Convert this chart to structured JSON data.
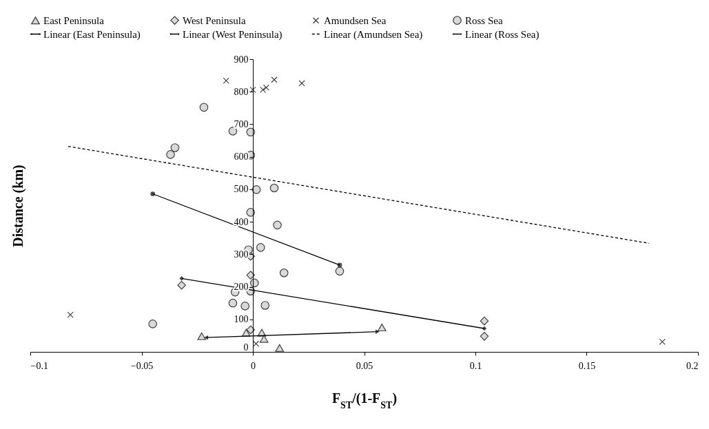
{
  "chart_data": {
    "type": "scatter",
    "xlabel": "F$_{ST}$/(1-F$_{ST}$)",
    "ylabel": "Distance (km)",
    "xlim": [
      -0.1,
      0.2
    ],
    "xticks": [
      -0.1,
      -0.05,
      0,
      0.05,
      0.1,
      0.15,
      0.2
    ],
    "ylim": [
      0,
      900
    ],
    "yticks": [
      0,
      100,
      200,
      300,
      400,
      500,
      600,
      700,
      800,
      900
    ],
    "grid": false,
    "legend": "top",
    "series": [
      {
        "name": "East Peninsula",
        "marker": "triangle",
        "color": "#d9d9d9",
        "x": [
          -0.023,
          -0.003,
          0.004,
          0.005,
          0.012,
          0.058
        ],
        "values": [
          48,
          59,
          59,
          40,
          12,
          75
        ]
      },
      {
        "name": "West Peninsula",
        "marker": "diamond",
        "color": "#d9d9d9",
        "x": [
          -0.001,
          -0.001,
          -0.032,
          -0.001,
          0.104,
          0.104
        ],
        "values": [
          294,
          236,
          205,
          68,
          95,
          48
        ]
      },
      {
        "name": "Amundsen Sea",
        "marker": "cross",
        "color": "#404040",
        "x": [
          -0.012,
          0,
          0.0045,
          0.006,
          0.0096,
          0.022,
          -0.082,
          0.0014,
          0.184
        ],
        "values": [
          834,
          806,
          806,
          813,
          837,
          826,
          114,
          25,
          31
        ]
      },
      {
        "name": "Ross Sea",
        "marker": "circle",
        "color": "#d9d9d9",
        "x": [
          -0.022,
          -0.009,
          -0.001,
          -0.035,
          -0.037,
          -0.001,
          0.0016,
          0.0096,
          -0.001,
          0.011,
          -0.002,
          0.0035,
          0.014,
          0.039,
          0.0007,
          -0.008,
          -0.001,
          -0.009,
          -0.0035,
          0.0055,
          -0.045
        ],
        "values": [
          752,
          679,
          676,
          628,
          607,
          605,
          499,
          504,
          429,
          390,
          314,
          321,
          243,
          248,
          212,
          184,
          187,
          150,
          141,
          143,
          86
        ]
      },
      {
        "name": "Linear (East Peninsula)",
        "type": "line",
        "marker": "triangle",
        "line_style": "solid",
        "color": "#000000",
        "x": [
          -0.021,
          0.056
        ],
        "values": [
          44,
          62
        ]
      },
      {
        "name": "Linear (West Peninsula)",
        "type": "line",
        "marker": "diamond",
        "line_style": "solid",
        "color": "#000000",
        "x": [
          -0.032,
          0.104
        ],
        "values": [
          226,
          72
        ]
      },
      {
        "name": "Linear (Amundsen Sea)",
        "type": "line",
        "marker": "none",
        "line_style": "dashed",
        "color": "#000000",
        "x": [
          -0.083,
          0.178
        ],
        "values": [
          632,
          334
        ]
      },
      {
        "name": "Linear (Ross Sea)",
        "type": "line",
        "marker": "circle",
        "line_style": "solid",
        "color": "#000000",
        "x": [
          -0.045,
          0.039
        ],
        "values": [
          486,
          267
        ]
      }
    ]
  }
}
